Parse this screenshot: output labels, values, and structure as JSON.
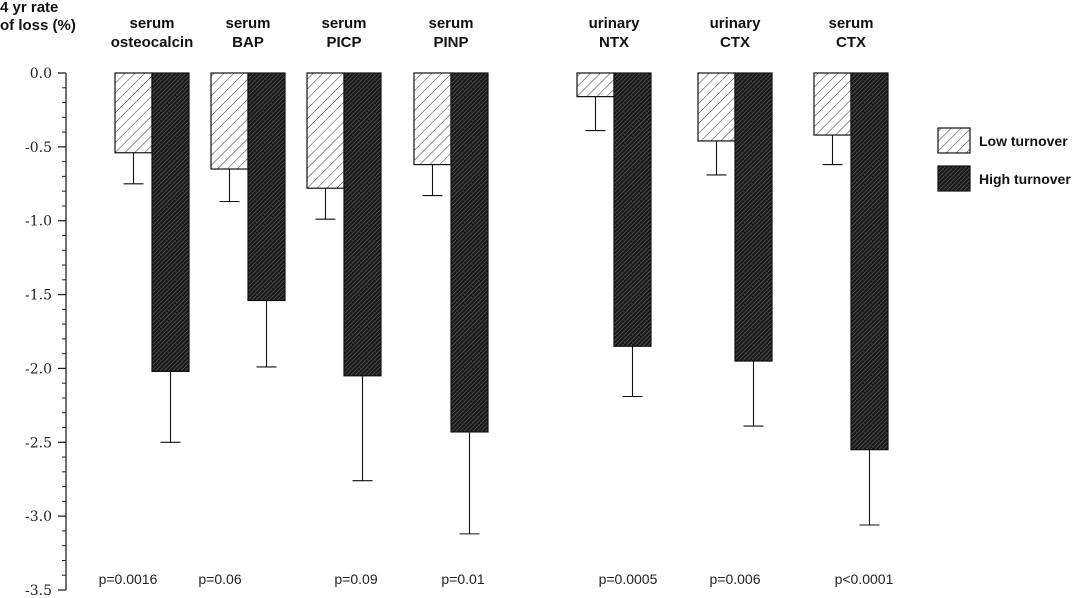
{
  "chart_data": {
    "type": "bar",
    "ylabel": [
      "4 yr rate",
      "of loss (%)"
    ],
    "ylim": [
      -3.5,
      0.0
    ],
    "yticks": [
      "0.0",
      "-0.5",
      "-1.0",
      "-1.5",
      "-2.0",
      "-2.5",
      "-3.0",
      "-3.5"
    ],
    "categories": [
      {
        "line1": "serum",
        "line2": "osteocalcin"
      },
      {
        "line1": "serum",
        "line2": "BAP"
      },
      {
        "line1": "serum",
        "line2": "PICP"
      },
      {
        "line1": "serum",
        "line2": "PINP"
      },
      {
        "line1": "urinary",
        "line2": "NTX"
      },
      {
        "line1": "urinary",
        "line2": "CTX"
      },
      {
        "line1": "serum",
        "line2": "CTX"
      }
    ],
    "series": [
      {
        "name": "Low turnover",
        "values": [
          -0.54,
          -0.65,
          -0.78,
          -0.62,
          -0.16,
          -0.46,
          -0.42
        ],
        "error_low": [
          -0.75,
          -0.87,
          -0.99,
          -0.83,
          -0.39,
          -0.69,
          -0.62
        ]
      },
      {
        "name": "High turnover",
        "values": [
          -2.02,
          -1.54,
          -2.05,
          -2.43,
          -1.85,
          -1.95,
          -2.55
        ],
        "error_low": [
          -2.5,
          -1.99,
          -2.76,
          -3.12,
          -2.19,
          -2.39,
          -3.06
        ]
      }
    ],
    "pvalues": [
      "p=0.0016",
      "p=0.06",
      "p=0.09",
      "p=0.01",
      "p=0.0005",
      "p=0.006",
      "p<0.0001"
    ],
    "legend_placement": "right",
    "grid": false
  }
}
